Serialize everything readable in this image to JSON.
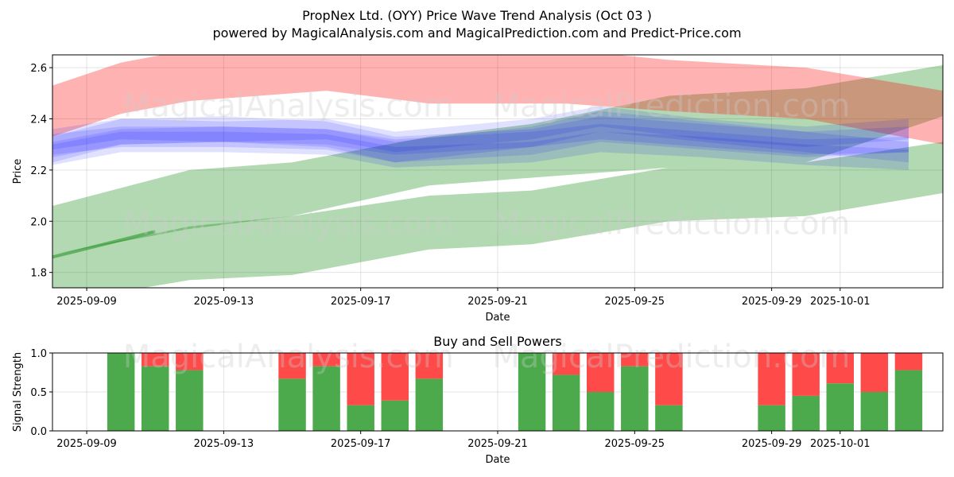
{
  "figure": {
    "title_line1": "PropNex Ltd. (OYY) Price Wave Trend Analysis (Oct 03 )",
    "title_line2": "powered by MagicalAnalysis.com and MagicalPrediction.com and Predict-Price.com",
    "watermark_left": "MagicalAnalysis.com",
    "watermark_right": "MagicalPrediction.com"
  },
  "chart_data": [
    {
      "type": "area",
      "title": "",
      "xlabel": "Date",
      "ylabel": "Price",
      "x_range": [
        "2025-09-08",
        "2025-10-04"
      ],
      "ylim": [
        1.74,
        2.65
      ],
      "y_ticks": [
        1.8,
        2.0,
        2.2,
        2.4,
        2.6
      ],
      "y_tick_labels": [
        "1.8",
        "2.0",
        "2.2",
        "2.4",
        "2.6"
      ],
      "x_ticks": [
        "2025-09-09",
        "2025-09-13",
        "2025-09-17",
        "2025-09-21",
        "2025-09-25",
        "2025-09-29",
        "2025-10-01"
      ],
      "x_tick_labels": [
        "2025-09-09",
        "2025-09-13",
        "2025-09-17",
        "2025-09-21",
        "2025-09-25",
        "2025-09-29",
        "2025-10-01"
      ],
      "grid": true,
      "colors": {
        "red": "#ff0000",
        "green": "#008000",
        "blue": "#0000ff"
      },
      "red_band": {
        "dates": [
          "2025-09-08",
          "2025-09-10",
          "2025-09-12",
          "2025-09-16",
          "2025-09-19",
          "2025-09-23",
          "2025-09-26",
          "2025-09-30",
          "2025-10-04"
        ],
        "upper": [
          2.53,
          2.62,
          2.67,
          2.68,
          2.67,
          2.67,
          2.63,
          2.6,
          2.51
        ],
        "lower": [
          2.33,
          2.42,
          2.47,
          2.51,
          2.46,
          2.46,
          2.43,
          2.4,
          2.3
        ]
      },
      "green_bands": [
        {
          "dates": [
            "2025-09-08",
            "2025-09-12",
            "2025-09-15",
            "2025-09-19",
            "2025-09-22",
            "2025-09-26",
            "2025-09-30",
            "2025-10-04"
          ],
          "upper": [
            2.06,
            2.2,
            2.23,
            2.33,
            2.38,
            2.49,
            2.52,
            2.61
          ],
          "lower": [
            1.87,
            1.97,
            2.02,
            2.14,
            2.17,
            2.21,
            2.23,
            2.41
          ]
        },
        {
          "dates": [
            "2025-09-08",
            "2025-09-12",
            "2025-09-15",
            "2025-09-19",
            "2025-09-22",
            "2025-09-26",
            "2025-09-30",
            "2025-10-04"
          ],
          "upper": [
            1.87,
            1.98,
            2.02,
            2.1,
            2.12,
            2.21,
            2.23,
            2.31
          ],
          "lower": [
            1.68,
            1.77,
            1.79,
            1.89,
            1.91,
            2.0,
            2.02,
            2.11
          ]
        }
      ],
      "blue_bands": [
        {
          "dates": [
            "2025-09-08",
            "2025-09-10",
            "2025-09-13",
            "2025-09-16",
            "2025-09-18",
            "2025-09-22",
            "2025-09-24",
            "2025-09-27",
            "2025-09-30",
            "2025-10-03"
          ],
          "center": [
            2.28,
            2.35,
            2.36,
            2.34,
            2.28,
            2.31,
            2.36,
            2.33,
            2.3,
            2.32
          ],
          "half_width": 0.05
        },
        {
          "dates": [
            "2025-09-08",
            "2025-09-10",
            "2025-09-13",
            "2025-09-16",
            "2025-09-18",
            "2025-09-22",
            "2025-09-24",
            "2025-09-27",
            "2025-09-30",
            "2025-10-03"
          ],
          "center": [
            2.3,
            2.33,
            2.33,
            2.32,
            2.27,
            2.33,
            2.39,
            2.35,
            2.31,
            2.27
          ],
          "half_width": 0.04
        },
        {
          "dates": [
            "2025-09-08",
            "2025-09-10",
            "2025-09-13",
            "2025-09-16",
            "2025-09-18",
            "2025-09-22",
            "2025-09-24",
            "2025-09-27",
            "2025-09-30",
            "2025-10-03"
          ],
          "center": [
            2.26,
            2.31,
            2.31,
            2.3,
            2.25,
            2.27,
            2.31,
            2.29,
            2.26,
            2.24
          ],
          "half_width": 0.04
        },
        {
          "dates": [
            "2025-09-08",
            "2025-09-10",
            "2025-09-13",
            "2025-09-16",
            "2025-09-18",
            "2025-09-22",
            "2025-09-24",
            "2025-09-27",
            "2025-09-30",
            "2025-10-03"
          ],
          "center": [
            2.32,
            2.36,
            2.35,
            2.36,
            2.31,
            2.36,
            2.41,
            2.36,
            2.33,
            2.36
          ],
          "half_width": 0.04
        },
        {
          "dates": [
            "2025-09-08",
            "2025-09-10",
            "2025-09-13",
            "2025-09-16",
            "2025-09-18",
            "2025-09-22",
            "2025-09-24",
            "2025-09-27",
            "2025-09-30",
            "2025-10-03"
          ],
          "center": [
            2.28,
            2.33,
            2.34,
            2.33,
            2.29,
            2.32,
            2.35,
            2.32,
            2.29,
            2.3
          ],
          "half_width": 0.03
        }
      ],
      "green_line": {
        "dates": [
          "2025-09-08",
          "2025-09-11"
        ],
        "values": [
          1.86,
          1.96
        ]
      },
      "watermark_y_values": [
        2.41,
        1.95
      ]
    },
    {
      "type": "bar",
      "title": "Buy and Sell Powers",
      "xlabel": "Date",
      "ylabel": "Signal Strength",
      "ylim": [
        0,
        1
      ],
      "y_ticks": [
        0.0,
        0.5,
        1.0
      ],
      "y_tick_labels": [
        "0.0",
        "0.5",
        "1.0"
      ],
      "x_range": [
        "2025-09-08",
        "2025-10-04"
      ],
      "x_ticks": [
        "2025-09-09",
        "2025-09-13",
        "2025-09-17",
        "2025-09-21",
        "2025-09-25",
        "2025-09-29",
        "2025-10-01"
      ],
      "x_tick_labels": [
        "2025-09-09",
        "2025-09-13",
        "2025-09-17",
        "2025-09-21",
        "2025-09-25",
        "2025-09-29",
        "2025-10-01"
      ],
      "grid": true,
      "colors": {
        "buy": "#4caa4c",
        "sell": "#ff4a4a"
      },
      "dates": [
        "2025-09-10",
        "2025-09-11",
        "2025-09-12",
        "2025-09-15",
        "2025-09-16",
        "2025-09-17",
        "2025-09-18",
        "2025-09-19",
        "2025-09-22",
        "2025-09-23",
        "2025-09-24",
        "2025-09-25",
        "2025-09-26",
        "2025-09-29",
        "2025-09-30",
        "2025-10-01",
        "2025-10-02",
        "2025-10-03"
      ],
      "series": [
        {
          "name": "Buy",
          "values": [
            1.0,
            0.83,
            0.78,
            0.67,
            0.83,
            0.33,
            0.39,
            0.67,
            1.0,
            0.72,
            0.5,
            0.83,
            0.33,
            0.33,
            0.45,
            0.61,
            0.5,
            0.78
          ]
        },
        {
          "name": "Sell",
          "values": [
            0.0,
            0.17,
            0.22,
            0.33,
            0.17,
            0.67,
            0.61,
            0.33,
            0.0,
            0.28,
            0.5,
            0.17,
            0.67,
            0.67,
            0.55,
            0.39,
            0.5,
            0.22
          ]
        }
      ]
    }
  ]
}
